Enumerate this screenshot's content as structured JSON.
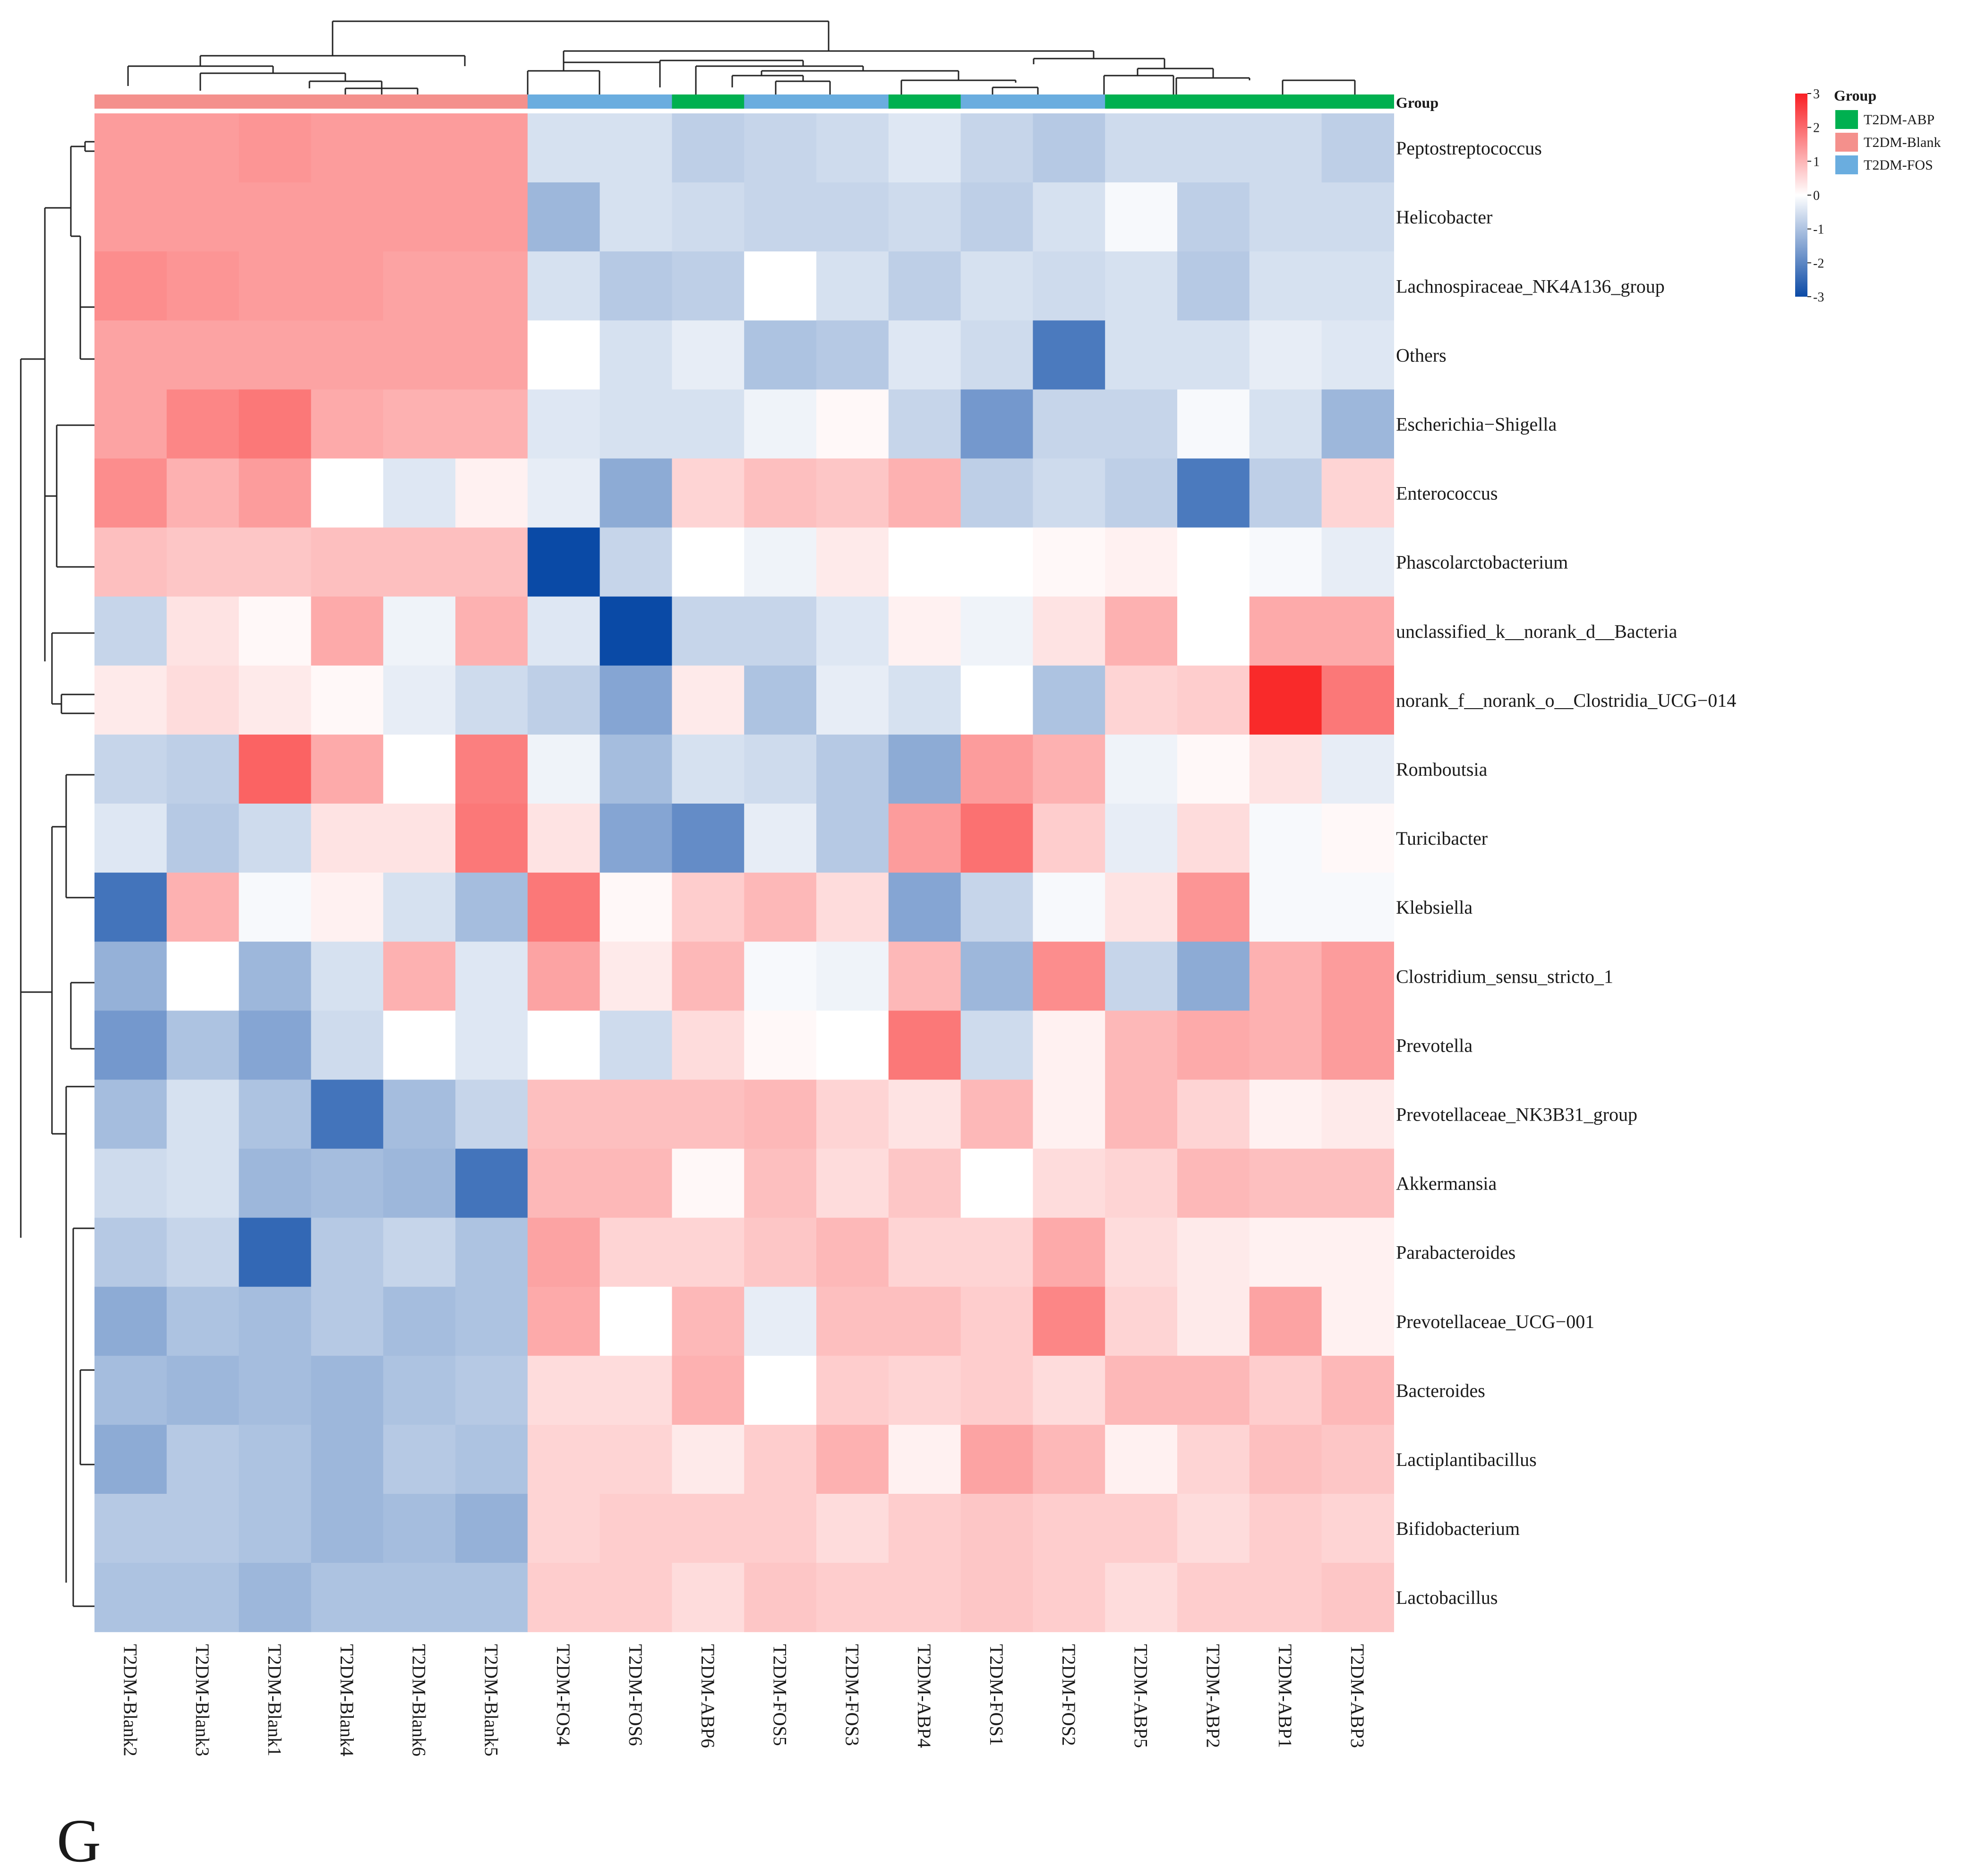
{
  "panel_label": "G",
  "colors": {
    "low": "#0a4aa6",
    "mid": "#ffffff",
    "high": "#f92a2a",
    "groups": {
      "T2DM-ABP": "#00b050",
      "T2DM-Blank": "#f4908c",
      "T2DM-FOS": "#6aaddf"
    }
  },
  "chart_data": {
    "type": "heatmap",
    "title": "",
    "value_range": [
      -3,
      3
    ],
    "group_annotation_label": "Group",
    "legend": {
      "title": "Group",
      "items": [
        "T2DM-ABP",
        "T2DM-Blank",
        "T2DM-FOS"
      ],
      "colorbar_ticks": [
        "3",
        "2",
        "1",
        "0",
        "-1",
        "-2",
        "-3"
      ]
    },
    "columns": [
      "T2DM-Blank2",
      "T2DM-Blank3",
      "T2DM-Blank1",
      "T2DM-Blank4",
      "T2DM-Blank6",
      "T2DM-Blank5",
      "T2DM-FOS4",
      "T2DM-FOS6",
      "T2DM-ABP6",
      "T2DM-FOS5",
      "T2DM-FOS3",
      "T2DM-ABP4",
      "T2DM-FOS1",
      "T2DM-FOS2",
      "T2DM-ABP5",
      "T2DM-ABP2",
      "T2DM-ABP1",
      "T2DM-ABP3"
    ],
    "column_groups": [
      "T2DM-Blank",
      "T2DM-Blank",
      "T2DM-Blank",
      "T2DM-Blank",
      "T2DM-Blank",
      "T2DM-Blank",
      "T2DM-FOS",
      "T2DM-FOS",
      "T2DM-ABP",
      "T2DM-FOS",
      "T2DM-FOS",
      "T2DM-ABP",
      "T2DM-FOS",
      "T2DM-FOS",
      "T2DM-ABP",
      "T2DM-ABP",
      "T2DM-ABP",
      "T2DM-ABP"
    ],
    "rows": [
      "Peptostreptococcus",
      "Helicobacter",
      "Lachnospiraceae_NK4A136_group",
      "Others",
      "Escherichia−Shigella",
      "Enterococcus",
      "Phascolarctobacterium",
      "unclassified_k__norank_d__Bacteria",
      "norank_f__norank_o__Clostridia_UCG−014",
      "Romboutsia",
      "Turicibacter",
      "Klebsiella",
      "Clostridium_sensu_stricto_1",
      "Prevotella",
      "Prevotellaceae_NK3B31_group",
      "Akkermansia",
      "Parabacteroides",
      "Prevotellaceae_UCG−001",
      "Bacteroides",
      "Lactiplantibacillus",
      "Bifidobacterium",
      "Lactobacillus"
    ],
    "values": [
      [
        1.4,
        1.4,
        1.5,
        1.4,
        1.4,
        1.4,
        -0.5,
        -0.5,
        -0.8,
        -0.7,
        -0.6,
        -0.4,
        -0.7,
        -0.9,
        -0.6,
        -0.6,
        -0.6,
        -0.8
      ],
      [
        1.4,
        1.4,
        1.4,
        1.4,
        1.4,
        1.4,
        -1.2,
        -0.5,
        -0.6,
        -0.7,
        -0.7,
        -0.6,
        -0.8,
        -0.5,
        -0.1,
        -0.8,
        -0.6,
        -0.6
      ],
      [
        1.6,
        1.5,
        1.4,
        1.4,
        1.3,
        1.3,
        -0.5,
        -0.9,
        -0.8,
        0.0,
        -0.5,
        -0.8,
        -0.5,
        -0.6,
        -0.5,
        -0.9,
        -0.5,
        -0.5
      ],
      [
        1.3,
        1.3,
        1.3,
        1.3,
        1.3,
        1.3,
        0.0,
        -0.5,
        -0.3,
        -1.0,
        -0.9,
        -0.4,
        -0.6,
        -2.2,
        -0.5,
        -0.5,
        -0.3,
        -0.4
      ],
      [
        1.3,
        1.7,
        1.9,
        1.2,
        1.1,
        1.1,
        -0.4,
        -0.5,
        -0.5,
        -0.2,
        0.1,
        -0.7,
        -1.7,
        -0.7,
        -0.7,
        -0.1,
        -0.5,
        -1.2
      ],
      [
        1.6,
        1.1,
        1.4,
        0.0,
        -0.4,
        0.2,
        -0.3,
        -1.4,
        0.6,
        0.9,
        0.8,
        1.1,
        -0.8,
        -0.6,
        -0.8,
        -2.2,
        -0.8,
        0.6
      ],
      [
        0.9,
        0.8,
        0.8,
        0.9,
        0.9,
        0.9,
        -3.0,
        -0.7,
        0.0,
        -0.2,
        0.3,
        0.0,
        0.0,
        0.1,
        0.2,
        0.0,
        -0.1,
        -0.3
      ],
      [
        -0.7,
        0.4,
        0.1,
        1.2,
        -0.2,
        1.1,
        -0.4,
        -3.0,
        -0.7,
        -0.7,
        -0.4,
        0.2,
        -0.2,
        0.4,
        1.1,
        0.0,
        1.2,
        1.2
      ],
      [
        0.3,
        0.5,
        0.3,
        0.1,
        -0.3,
        -0.6,
        -0.8,
        -1.5,
        0.3,
        -1.0,
        -0.3,
        -0.5,
        0.0,
        -1.0,
        0.6,
        0.7,
        3.0,
        1.9
      ],
      [
        -0.7,
        -0.8,
        2.2,
        1.2,
        0.0,
        1.8,
        -0.2,
        -1.1,
        -0.5,
        -0.6,
        -0.9,
        -1.4,
        1.4,
        1.1,
        -0.2,
        0.1,
        0.4,
        -0.3
      ],
      [
        -0.4,
        -0.9,
        -0.6,
        0.4,
        0.4,
        1.9,
        0.4,
        -1.5,
        -1.9,
        -0.3,
        -0.9,
        1.4,
        2.0,
        0.7,
        -0.3,
        0.5,
        -0.1,
        0.1
      ],
      [
        -2.3,
        1.1,
        -0.1,
        0.2,
        -0.5,
        -1.1,
        1.9,
        0.1,
        0.7,
        1.0,
        0.5,
        -1.5,
        -0.7,
        -0.1,
        0.4,
        1.5,
        -0.1,
        -0.1
      ],
      [
        -1.3,
        0.0,
        -1.2,
        -0.5,
        1.1,
        -0.4,
        1.3,
        0.3,
        1.0,
        -0.1,
        -0.2,
        1.0,
        -1.2,
        1.6,
        -0.7,
        -1.4,
        1.1,
        1.4
      ],
      [
        -1.7,
        -1.0,
        -1.5,
        -0.6,
        0.0,
        -0.4,
        0.0,
        -0.6,
        0.5,
        0.1,
        0.0,
        1.9,
        -0.6,
        0.2,
        1.0,
        1.2,
        1.1,
        1.4
      ],
      [
        -1.1,
        -0.5,
        -1.0,
        -2.3,
        -1.1,
        -0.7,
        0.9,
        0.9,
        0.9,
        1.0,
        0.6,
        0.4,
        1.0,
        0.2,
        1.0,
        0.6,
        0.2,
        0.3
      ],
      [
        -0.6,
        -0.5,
        -1.2,
        -1.1,
        -1.2,
        -2.3,
        1.0,
        1.0,
        0.1,
        0.9,
        0.5,
        0.8,
        0.0,
        0.5,
        0.6,
        1.0,
        0.9,
        0.9
      ],
      [
        -0.9,
        -0.7,
        -2.5,
        -0.9,
        -0.7,
        -1.0,
        1.3,
        0.6,
        0.6,
        0.8,
        1.0,
        0.6,
        0.6,
        1.2,
        0.5,
        0.3,
        0.2,
        0.2
      ],
      [
        -1.4,
        -1.0,
        -1.1,
        -0.9,
        -1.1,
        -1.0,
        1.2,
        0.0,
        1.0,
        -0.3,
        0.9,
        0.9,
        0.7,
        1.7,
        0.6,
        0.3,
        1.3,
        0.2
      ],
      [
        -1.1,
        -1.2,
        -1.1,
        -1.2,
        -1.0,
        -0.9,
        0.5,
        0.5,
        1.1,
        0.0,
        0.7,
        0.6,
        0.7,
        0.5,
        1.0,
        1.0,
        0.7,
        1.0
      ],
      [
        -1.4,
        -0.9,
        -1.0,
        -1.2,
        -0.9,
        -1.0,
        0.6,
        0.6,
        0.3,
        0.7,
        1.1,
        0.2,
        1.3,
        1.0,
        0.2,
        0.6,
        0.9,
        0.8
      ],
      [
        -0.9,
        -0.9,
        -1.0,
        -1.2,
        -1.1,
        -1.3,
        0.6,
        0.7,
        0.7,
        0.7,
        0.5,
        0.7,
        0.8,
        0.7,
        0.7,
        0.5,
        0.7,
        0.6
      ],
      [
        -1.0,
        -1.0,
        -1.2,
        -1.0,
        -1.0,
        -1.0,
        0.7,
        0.7,
        0.5,
        0.8,
        0.7,
        0.7,
        0.8,
        0.7,
        0.5,
        0.7,
        0.7,
        0.8
      ]
    ]
  }
}
